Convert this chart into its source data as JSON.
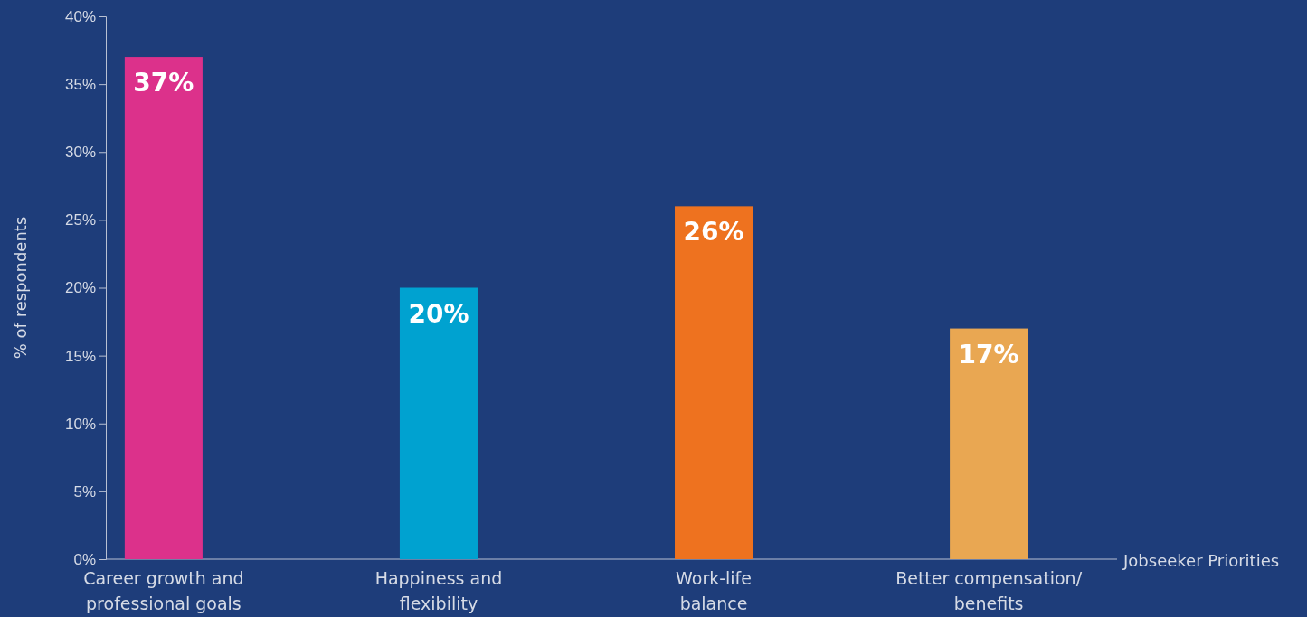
{
  "chart_data": {
    "type": "bar",
    "xlabel": "Jobseeker Priorities",
    "ylabel": "% of respondents",
    "categories": [
      "Career growth and professional goals",
      "Happiness and flexibility",
      "Work-life balance",
      "Better compensation/ benefits"
    ],
    "values": [
      37,
      20,
      26,
      17
    ],
    "colors": [
      "#dc318b",
      "#00a2d0",
      "#ee721f",
      "#e9a752"
    ],
    "value_labels": [
      "37%",
      "20%",
      "26%",
      "17%"
    ],
    "ylim": [
      0,
      40
    ],
    "yticks": [
      {
        "value": 0,
        "label": "0%"
      },
      {
        "value": 5,
        "label": "5%"
      },
      {
        "value": 10,
        "label": "10%"
      },
      {
        "value": 15,
        "label": "15%"
      },
      {
        "value": 20,
        "label": "20%"
      },
      {
        "value": 25,
        "label": "25%"
      },
      {
        "value": 30,
        "label": "30%"
      },
      {
        "value": 35,
        "label": "35%"
      },
      {
        "value": 40,
        "label": "40%"
      }
    ],
    "grid": false
  }
}
